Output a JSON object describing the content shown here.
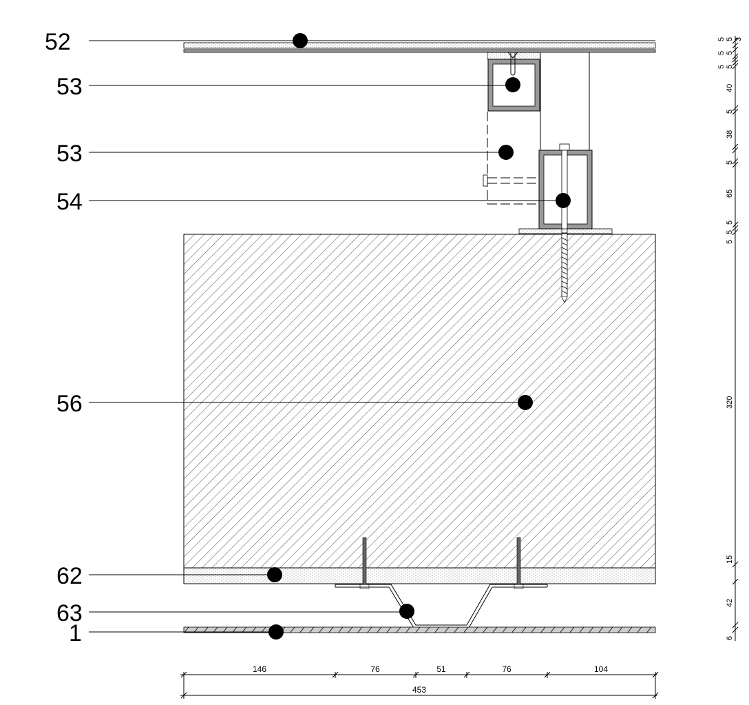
{
  "callouts": [
    {
      "id": "52",
      "label": "52"
    },
    {
      "id": "53a",
      "label": "53"
    },
    {
      "id": "53b",
      "label": "53"
    },
    {
      "id": "54",
      "label": "54"
    },
    {
      "id": "56",
      "label": "56"
    },
    {
      "id": "62",
      "label": "62"
    },
    {
      "id": "63",
      "label": "63"
    },
    {
      "id": "1",
      "label": "1"
    }
  ],
  "horizontal_dimensions": {
    "segments": [
      "146",
      "76",
      "51",
      "76",
      "104"
    ],
    "total": "453"
  },
  "vertical_dimensions": [
    "5",
    "5",
    "3",
    "5",
    "5",
    "5",
    "5",
    "40",
    "5",
    "38",
    "5",
    "65",
    "5",
    "5",
    "5",
    "320",
    "15",
    "42",
    "6"
  ]
}
